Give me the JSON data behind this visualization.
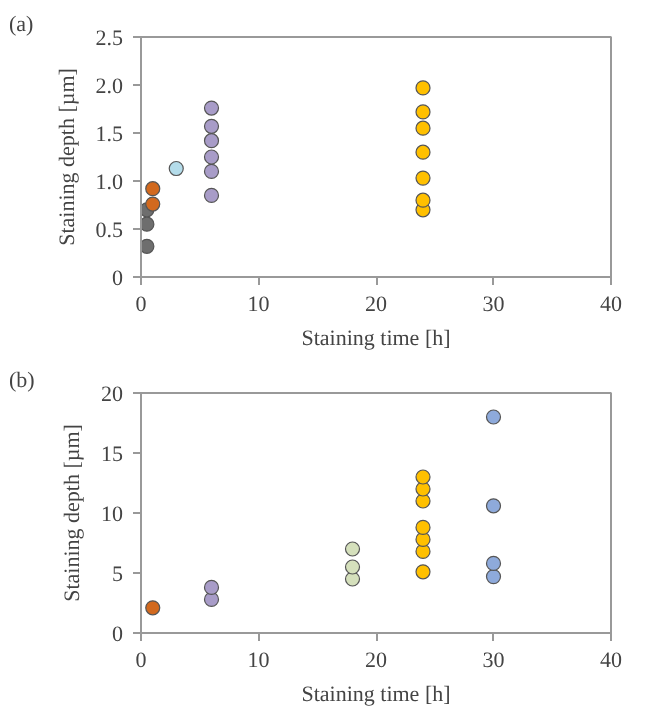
{
  "chart_data": [
    {
      "type": "scatter",
      "annotations": [
        "(a)"
      ],
      "xlabel": "Staining time [h]",
      "ylabel": "Staining depth [µm]",
      "xlim": [
        0,
        40
      ],
      "ylim": [
        0,
        2.5
      ],
      "xticks": [
        0,
        10,
        20,
        30,
        40
      ],
      "yticks": [
        0,
        0.5,
        {
          "value": 1,
          "label": "1.0"
        },
        1.5,
        {
          "value": 2,
          "label": "2.0"
        },
        2.5
      ],
      "marker": "circle",
      "grid": false,
      "series": [
        {
          "color": "#6e6e6e",
          "x": [
            0.5,
            0.5,
            0.5
          ],
          "values": [
            0.32,
            0.55,
            0.7
          ]
        },
        {
          "color": "#d2691e",
          "x": [
            1,
            1
          ],
          "values": [
            0.76,
            0.92
          ]
        },
        {
          "color": "#b4dcea",
          "x": [
            3
          ],
          "values": [
            1.13
          ]
        },
        {
          "color": "#a89cc8",
          "x": [
            6,
            6,
            6,
            6,
            6,
            6
          ],
          "values": [
            0.85,
            1.1,
            1.25,
            1.42,
            1.57,
            1.76
          ]
        },
        {
          "color": "#ffc000",
          "x": [
            24,
            24,
            24,
            24,
            24,
            24,
            24
          ],
          "values": [
            0.7,
            0.8,
            1.03,
            1.3,
            1.55,
            1.72,
            1.97
          ]
        }
      ]
    },
    {
      "type": "scatter",
      "annotations": [
        "(b)"
      ],
      "xlabel": "Staining time [h]",
      "ylabel": "Staining depth [µm]",
      "xlim": [
        0,
        40
      ],
      "ylim": [
        0,
        20
      ],
      "xticks": [
        0,
        10,
        20,
        30,
        40
      ],
      "yticks": [
        0,
        5,
        10,
        15,
        20
      ],
      "marker": "circle",
      "grid": false,
      "series": [
        {
          "color": "#d2691e",
          "x": [
            1
          ],
          "values": [
            2.1
          ]
        },
        {
          "color": "#a89cc8",
          "x": [
            6,
            6
          ],
          "values": [
            2.8,
            3.8
          ]
        },
        {
          "color": "#d5e0bc",
          "x": [
            18,
            18,
            18
          ],
          "values": [
            4.5,
            5.5,
            7.0
          ]
        },
        {
          "color": "#ffc000",
          "x": [
            24,
            24,
            24,
            24,
            24,
            24,
            24
          ],
          "values": [
            5.1,
            6.8,
            7.8,
            8.8,
            11,
            12,
            13
          ]
        },
        {
          "color": "#8eaadb",
          "x": [
            30,
            30,
            30,
            30
          ],
          "values": [
            4.7,
            5.8,
            10.6,
            18
          ]
        }
      ]
    }
  ]
}
